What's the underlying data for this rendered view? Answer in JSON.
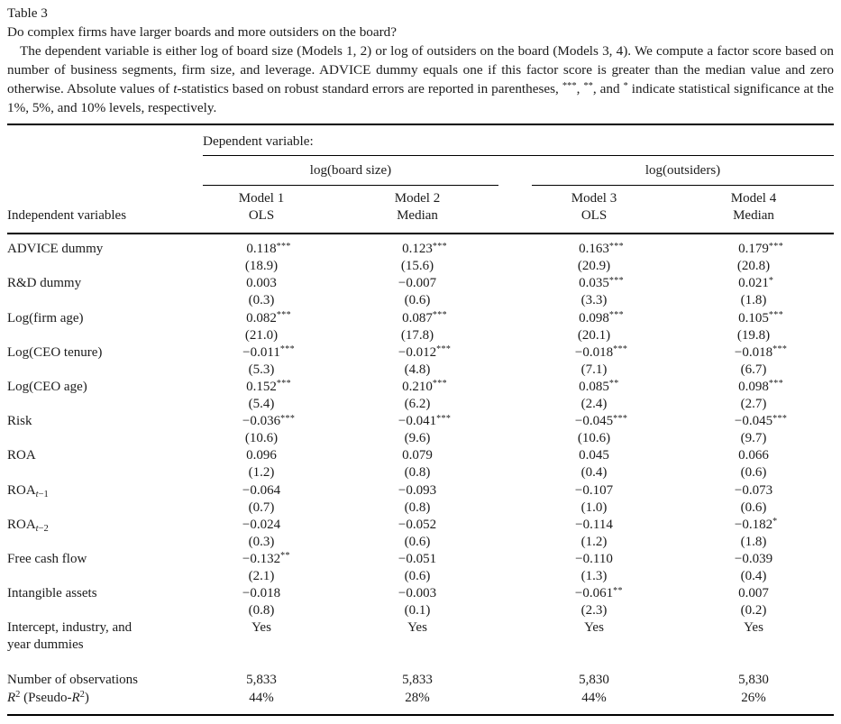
{
  "title": "Table 3",
  "subtitle": "Do complex firms have larger boards and more outsiders on the board?",
  "note_segments": [
    {
      "t": "The dependent variable is either log of board size (Models 1, 2) or log of outsiders on the board (Models 3, 4). We compute a factor score based on number of business segments, firm size, and leverage. ADVICE dummy equals one if this factor score is greater than the median value and zero otherwise. Absolute values of "
    },
    {
      "t": "t",
      "s": "i"
    },
    {
      "t": "-statistics based on robust standard errors are reported in parentheses, "
    },
    {
      "t": "***",
      "s": "sup"
    },
    {
      "t": ", "
    },
    {
      "t": "**",
      "s": "sup"
    },
    {
      "t": ", and "
    },
    {
      "t": "*",
      "s": "sup"
    },
    {
      "t": " indicate statistical significance at the 1%, 5%, and 10% levels, respectively."
    }
  ],
  "table": {
    "dep_header": "Dependent variable:",
    "col_header": "Independent variables",
    "groups": [
      {
        "label": "log(board size)"
      },
      {
        "label": "log(outsiders)"
      }
    ],
    "models": [
      {
        "name": "Model 1",
        "method": "OLS"
      },
      {
        "name": "Model 2",
        "method": "Median"
      },
      {
        "name": "Model 3",
        "method": "OLS"
      },
      {
        "name": "Model 4",
        "method": "Median"
      }
    ],
    "rows": [
      {
        "type": "coef",
        "label": [
          {
            "t": "ADVICE dummy"
          }
        ],
        "coefs": [
          "0.118",
          "0.123",
          "0.163",
          "0.179"
        ],
        "stars": [
          "***",
          "***",
          "***",
          "***"
        ],
        "tstats": [
          "(18.9)",
          "(15.6)",
          "(20.9)",
          "(20.8)"
        ]
      },
      {
        "type": "coef",
        "label": [
          {
            "t": "R&D dummy"
          }
        ],
        "coefs": [
          "0.003",
          "−0.007",
          "0.035",
          "0.021"
        ],
        "stars": [
          "",
          "",
          "***",
          "*"
        ],
        "tstats": [
          "(0.3)",
          "(0.6)",
          "(3.3)",
          "(1.8)"
        ]
      },
      {
        "type": "coef",
        "label": [
          {
            "t": "Log(firm age)"
          }
        ],
        "coefs": [
          "0.082",
          "0.087",
          "0.098",
          "0.105"
        ],
        "stars": [
          "***",
          "***",
          "***",
          "***"
        ],
        "tstats": [
          "(21.0)",
          "(17.8)",
          "(20.1)",
          "(19.8)"
        ]
      },
      {
        "type": "coef",
        "label": [
          {
            "t": "Log(CEO tenure)"
          }
        ],
        "coefs": [
          "−0.011",
          "−0.012",
          "−0.018",
          "−0.018"
        ],
        "stars": [
          "***",
          "***",
          "***",
          "***"
        ],
        "tstats": [
          "(5.3)",
          "(4.8)",
          "(7.1)",
          "(6.7)"
        ]
      },
      {
        "type": "coef",
        "label": [
          {
            "t": "Log(CEO age)"
          }
        ],
        "coefs": [
          "0.152",
          "0.210",
          "0.085",
          "0.098"
        ],
        "stars": [
          "***",
          "***",
          "**",
          "***"
        ],
        "tstats": [
          "(5.4)",
          "(6.2)",
          "(2.4)",
          "(2.7)"
        ]
      },
      {
        "type": "coef",
        "label": [
          {
            "t": "Risk"
          }
        ],
        "coefs": [
          "−0.036",
          "−0.041",
          "−0.045",
          "−0.045"
        ],
        "stars": [
          "***",
          "***",
          "***",
          "***"
        ],
        "tstats": [
          "(10.6)",
          "(9.6)",
          "(10.6)",
          "(9.7)"
        ]
      },
      {
        "type": "coef",
        "label": [
          {
            "t": "ROA"
          }
        ],
        "coefs": [
          "0.096",
          "0.079",
          "0.045",
          "0.066"
        ],
        "stars": [
          "",
          "",
          "",
          ""
        ],
        "tstats": [
          "(1.2)",
          "(0.8)",
          "(0.4)",
          "(0.6)"
        ]
      },
      {
        "type": "coef",
        "label": [
          {
            "t": "ROA"
          },
          {
            "t": "t",
            "s": "subi"
          },
          {
            "t": "−1",
            "s": "sub"
          }
        ],
        "coefs": [
          "−0.064",
          "−0.093",
          "−0.107",
          "−0.073"
        ],
        "stars": [
          "",
          "",
          "",
          ""
        ],
        "tstats": [
          "(0.7)",
          "(0.8)",
          "(1.0)",
          "(0.6)"
        ]
      },
      {
        "type": "coef",
        "label": [
          {
            "t": "ROA"
          },
          {
            "t": "t",
            "s": "subi"
          },
          {
            "t": "−2",
            "s": "sub"
          }
        ],
        "coefs": [
          "−0.024",
          "−0.052",
          "−0.114",
          "−0.182"
        ],
        "stars": [
          "",
          "",
          "",
          "*"
        ],
        "tstats": [
          "(0.3)",
          "(0.6)",
          "(1.2)",
          "(1.8)"
        ]
      },
      {
        "type": "coef",
        "label": [
          {
            "t": "Free cash flow"
          }
        ],
        "coefs": [
          "−0.132",
          "−0.051",
          "−0.110",
          "−0.039"
        ],
        "stars": [
          "**",
          "",
          "",
          ""
        ],
        "tstats": [
          "(2.1)",
          "(0.6)",
          "(1.3)",
          "(0.4)"
        ]
      },
      {
        "type": "coef",
        "label": [
          {
            "t": "Intangible assets"
          }
        ],
        "coefs": [
          "−0.018",
          "−0.003",
          "−0.061",
          "0.007"
        ],
        "stars": [
          "",
          "",
          "**",
          ""
        ],
        "tstats": [
          "(0.8)",
          "(0.1)",
          "(2.3)",
          "(0.2)"
        ]
      },
      {
        "type": "single",
        "label": [
          {
            "t": "Intercept, industry, and"
          },
          {
            "s": "br"
          },
          {
            "t": "year dummies"
          }
        ],
        "values": [
          "Yes",
          "Yes",
          "Yes",
          "Yes"
        ]
      },
      {
        "type": "gap"
      },
      {
        "type": "single",
        "label": [
          {
            "t": "Number of observations"
          }
        ],
        "values": [
          "5,833",
          "5,833",
          "5,830",
          "5,830"
        ]
      },
      {
        "type": "single",
        "label": [
          {
            "t": "R",
            "s": "i"
          },
          {
            "t": "2",
            "s": "sup"
          },
          {
            "t": " (Pseudo-"
          },
          {
            "t": "R",
            "s": "i"
          },
          {
            "t": "2",
            "s": "sup"
          },
          {
            "t": ")"
          }
        ],
        "values": [
          "44%",
          "28%",
          "44%",
          "26%"
        ]
      }
    ]
  },
  "colors": {
    "text": "#1b1b1b",
    "rule": "#000000",
    "background": "#ffffff"
  }
}
